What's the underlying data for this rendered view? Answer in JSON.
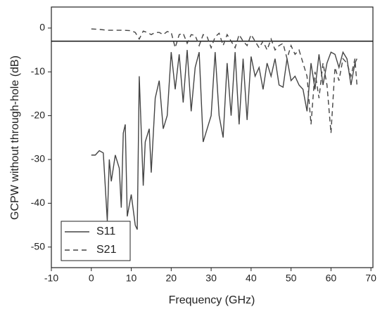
{
  "chart_data": {
    "type": "line",
    "xlabel": "Frequency (GHz)",
    "ylabel": "GCPW without through-hole (dB)",
    "xlim": [
      -10,
      70.5
    ],
    "ylim": [
      -54.7,
      4.8
    ],
    "xticks": [
      -10,
      0,
      10,
      20,
      30,
      40,
      50,
      60,
      70
    ],
    "yticks": [
      0,
      -10,
      -20,
      -30,
      -40,
      -50
    ],
    "hline": -3,
    "legend": "lower left",
    "series": [
      {
        "name": "S11",
        "color": "#444444",
        "dashed": false,
        "x": [
          0,
          1,
          2,
          3,
          4,
          4.5,
          5,
          6,
          7,
          7.5,
          8,
          8.5,
          9,
          10,
          11,
          11.5,
          12,
          13,
          13.5,
          14.5,
          15,
          16,
          17,
          18,
          19,
          20,
          21,
          22,
          23,
          24,
          25,
          26,
          27,
          28,
          29,
          30,
          31,
          32,
          33,
          34,
          35,
          36,
          37,
          38,
          39,
          40,
          41,
          42,
          43,
          44,
          45,
          46,
          47,
          48,
          49,
          50,
          51,
          52,
          53,
          54,
          55,
          56,
          57,
          58,
          59,
          60,
          61,
          62,
          63,
          64,
          65,
          66,
          66.5
        ],
        "values": [
          -29,
          -29,
          -28,
          -28.5,
          -44,
          -30,
          -35,
          -29,
          -32,
          -41,
          -24,
          -22,
          -43,
          -38,
          -45,
          -46,
          -11,
          -36,
          -26,
          -23,
          -33,
          -16,
          -12,
          -23,
          -20,
          -5.5,
          -14,
          -6,
          -17,
          -5,
          -19,
          -9,
          -5.5,
          -26,
          -23,
          -20,
          -5.5,
          -20,
          -25,
          -8,
          -20,
          -5.5,
          -22,
          -7,
          -21,
          -6.5,
          -11,
          -9,
          -14,
          -8,
          -11,
          -7,
          -13,
          -13.5,
          -7,
          -12,
          -11,
          -13,
          -14,
          -19,
          -8,
          -14,
          -6,
          -13,
          -8,
          -5.5,
          -6,
          -9,
          -5.5,
          -7,
          -13,
          -8,
          -7
        ]
      },
      {
        "name": "S21",
        "color": "#444444",
        "dashed": true,
        "x": [
          0,
          2,
          4,
          6,
          8,
          10,
          11,
          12,
          13,
          14,
          15,
          16,
          17,
          18,
          19,
          20,
          21,
          22,
          23,
          24,
          25,
          26,
          27,
          28,
          29,
          30,
          31,
          32,
          33,
          34,
          35,
          36,
          37,
          38,
          39,
          40,
          41,
          42,
          43,
          44,
          45,
          46,
          47,
          48,
          49,
          50,
          51,
          52,
          53,
          54,
          55,
          56,
          57,
          58,
          59,
          60,
          61,
          62,
          63,
          64,
          65,
          66,
          66.5
        ],
        "values": [
          -0.2,
          -0.3,
          -0.5,
          -0.5,
          -0.5,
          -0.6,
          -1,
          -2.5,
          -0.7,
          -1,
          -1.5,
          -1,
          -1,
          -1.5,
          -0.8,
          -1,
          -4.5,
          -1.5,
          -1.2,
          -3.5,
          -1.5,
          -1.7,
          -4,
          -1.5,
          -2,
          -4.5,
          -2,
          -1.2,
          -4,
          -1.5,
          -3,
          -4.5,
          -1.5,
          -3,
          -4,
          -1.5,
          -3,
          -4.5,
          -3,
          -5,
          -2.5,
          -5,
          -4,
          -3.5,
          -7,
          -4,
          -6,
          -5,
          -8,
          -11,
          -22,
          -10,
          -16,
          -8,
          -13,
          -24,
          -9,
          -12,
          -7,
          -8,
          -11,
          -7,
          -13
        ]
      }
    ]
  }
}
